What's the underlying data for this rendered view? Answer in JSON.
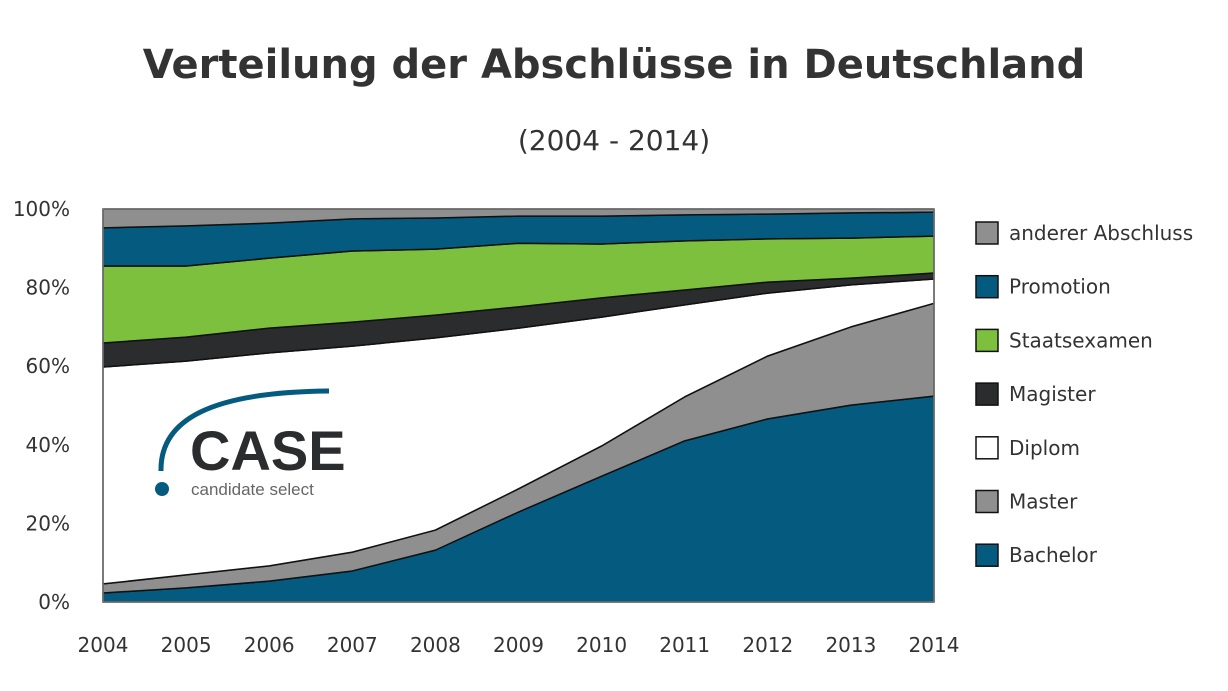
{
  "chart_data": {
    "type": "area",
    "stacked": true,
    "title": "Verteilung der Abschlüsse in Deutschland",
    "subtitle": "(2004 - 2014)",
    "x": [
      "2004",
      "2005",
      "2006",
      "2007",
      "2008",
      "2009",
      "2010",
      "2011",
      "2012",
      "2013",
      "2014"
    ],
    "ylim": [
      0,
      100
    ],
    "yticks": [
      "0%",
      "20%",
      "40%",
      "60%",
      "80%",
      "100%"
    ],
    "grid": false,
    "legend_position": "right",
    "series": [
      {
        "name": "Bachelor",
        "color": "#055a80",
        "values": [
          2.3,
          3.6,
          5.3,
          7.9,
          13.2,
          22.9,
          32.0,
          41.0,
          46.6,
          50.1,
          52.4
        ]
      },
      {
        "name": "Master",
        "color": "#8f8f8f",
        "values": [
          2.3,
          3.3,
          3.9,
          4.8,
          5.1,
          5.9,
          7.7,
          11.2,
          16.0,
          19.9,
          23.6
        ]
      },
      {
        "name": "Diplom",
        "color": "#ffffff",
        "values": [
          55.2,
          54.4,
          54.2,
          52.4,
          48.9,
          40.9,
          32.8,
          23.4,
          16.0,
          10.7,
          6.2
        ]
      },
      {
        "name": "Magister",
        "color": "#2b2c2e",
        "values": [
          6.1,
          6.1,
          6.3,
          6.1,
          5.8,
          5.4,
          4.9,
          3.8,
          2.8,
          1.7,
          1.5
        ]
      },
      {
        "name": "Staatsexamen",
        "color": "#7dc03e",
        "values": [
          19.6,
          18.1,
          17.8,
          18.1,
          16.8,
          16.2,
          13.7,
          12.5,
          11.0,
          10.2,
          9.4
        ]
      },
      {
        "name": "Promotion",
        "color": "#055a80",
        "values": [
          9.7,
          10.2,
          8.9,
          8.2,
          7.9,
          6.9,
          7.1,
          6.6,
          6.3,
          6.4,
          6.1
        ]
      },
      {
        "name": "anderer Abschluss",
        "color": "#8f8f8f",
        "values": [
          4.8,
          4.3,
          3.6,
          2.5,
          2.3,
          1.8,
          1.8,
          1.5,
          1.3,
          1.0,
          0.8
        ]
      }
    ]
  },
  "logo": {
    "name": "CASE",
    "tagline": "candidate select",
    "color": "#055a80"
  }
}
